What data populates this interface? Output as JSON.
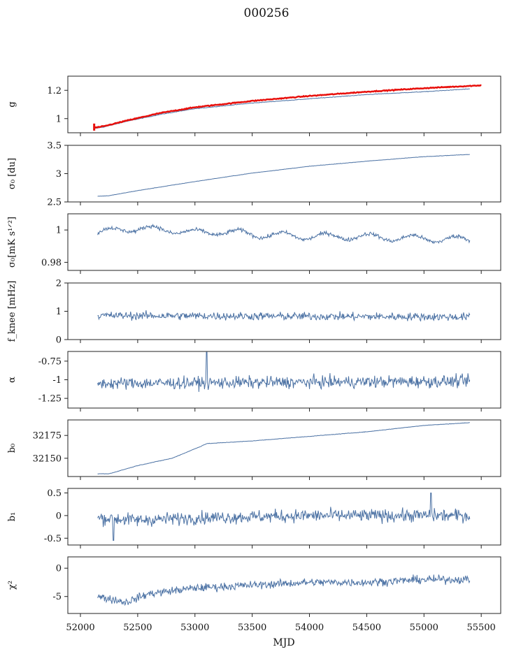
{
  "figure": {
    "title": "000256",
    "xlabel": "MJD",
    "xticks": [
      52000,
      52500,
      53000,
      53500,
      54000,
      54500,
      55000,
      55500
    ],
    "xlim": [
      51890,
      55670
    ]
  },
  "colors": {
    "series": "#4c72a4",
    "highlight": "#e8100c"
  },
  "chart_data": [
    {
      "type": "line",
      "panel": "g",
      "ylabel": "g",
      "ylim": [
        0.9,
        1.3
      ],
      "yticks": [
        1.0,
        1.2
      ],
      "x_range": [
        52120,
        55400
      ],
      "noise": 0.002,
      "curve": [
        [
          52120,
          0.93
        ],
        [
          52200,
          0.94
        ],
        [
          52400,
          0.98
        ],
        [
          52700,
          1.03
        ],
        [
          53000,
          1.07
        ],
        [
          53500,
          1.11
        ],
        [
          54000,
          1.14
        ],
        [
          54500,
          1.17
        ],
        [
          55000,
          1.19
        ],
        [
          55400,
          1.21
        ]
      ],
      "overlay": {
        "x_range": [
          52120,
          55500
        ],
        "noise": 0.003,
        "curve": [
          [
            52120,
            0.935
          ],
          [
            52200,
            0.945
          ],
          [
            52400,
            0.985
          ],
          [
            52700,
            1.04
          ],
          [
            53000,
            1.08
          ],
          [
            53500,
            1.125
          ],
          [
            54000,
            1.16
          ],
          [
            54500,
            1.19
          ],
          [
            55000,
            1.215
          ],
          [
            55500,
            1.235
          ]
        ]
      }
    },
    {
      "type": "line",
      "panel": "sigma0_du",
      "ylabel": "σ₀ [du]",
      "ylim": [
        2.5,
        3.5
      ],
      "yticks": [
        2.5,
        3.0,
        3.5
      ],
      "x_range": [
        52150,
        55400
      ],
      "noise": 0.003,
      "curve": [
        [
          52150,
          2.6
        ],
        [
          52250,
          2.61
        ],
        [
          52500,
          2.7
        ],
        [
          53000,
          2.86
        ],
        [
          53500,
          3.01
        ],
        [
          54000,
          3.13
        ],
        [
          54500,
          3.22
        ],
        [
          55000,
          3.3
        ],
        [
          55400,
          3.34
        ]
      ]
    },
    {
      "type": "line",
      "panel": "sigma0_mk",
      "ylabel": "σ₀[mK s¹ᐟ²]",
      "ylim": [
        0.975,
        1.01
      ],
      "yticks": [
        0.98,
        1.0
      ],
      "x_range": [
        52150,
        55400
      ],
      "noise": 0.0012,
      "curve": [
        [
          52150,
          0.998
        ],
        [
          52400,
          1.001
        ],
        [
          52800,
          1.0
        ],
        [
          53000,
          0.998
        ],
        [
          53200,
          0.999
        ],
        [
          53600,
          0.997
        ],
        [
          54000,
          0.996
        ],
        [
          54400,
          0.996
        ],
        [
          54800,
          0.995
        ],
        [
          55400,
          0.994
        ]
      ],
      "osc_amp": 0.002,
      "osc_period": 380
    },
    {
      "type": "line",
      "panel": "fknee",
      "ylabel": "f_knee [mHz]",
      "ylim": [
        0,
        2
      ],
      "yticks": [
        0,
        1,
        2
      ],
      "x_range": [
        52150,
        55400
      ],
      "noise": 0.14,
      "curve": [
        [
          52150,
          0.85
        ],
        [
          55400,
          0.8
        ]
      ]
    },
    {
      "type": "line",
      "panel": "alpha",
      "ylabel": "α",
      "ylim": [
        -1.38,
        -0.62
      ],
      "yticks": [
        -1.25,
        -1.0,
        -0.75
      ],
      "x_range": [
        52150,
        55400
      ],
      "noise": 0.08,
      "curve": [
        [
          52150,
          -1.05
        ],
        [
          55400,
          -1.02
        ]
      ],
      "spikes": [
        [
          53100,
          -0.63
        ]
      ]
    },
    {
      "type": "line",
      "panel": "b0",
      "ylabel": "b₀",
      "ylim": [
        32130,
        32192
      ],
      "yticks": [
        32150,
        32175
      ],
      "x_range": [
        52150,
        55400
      ],
      "noise": 0.25,
      "curve": [
        [
          52150,
          32133
        ],
        [
          52250,
          32133
        ],
        [
          52500,
          32142
        ],
        [
          52800,
          32150
        ],
        [
          53050,
          32163
        ],
        [
          53100,
          32166
        ],
        [
          53500,
          32169
        ],
        [
          54000,
          32174
        ],
        [
          54500,
          32179
        ],
        [
          55000,
          32186
        ],
        [
          55400,
          32189
        ]
      ]
    },
    {
      "type": "line",
      "panel": "b1",
      "ylabel": "b₁",
      "ylim": [
        -0.65,
        0.6
      ],
      "yticks": [
        -0.5,
        0.0,
        0.5
      ],
      "x_range": [
        52150,
        55400
      ],
      "noise": 0.14,
      "curve": [
        [
          52150,
          -0.05
        ],
        [
          52500,
          -0.1
        ],
        [
          53000,
          -0.05
        ],
        [
          54000,
          0.0
        ],
        [
          55400,
          0.0
        ]
      ],
      "spikes": [
        [
          55060,
          0.5
        ],
        [
          52290,
          -0.55
        ]
      ]
    },
    {
      "type": "line",
      "panel": "chi2",
      "ylabel": "χ²",
      "ylim": [
        -8,
        2
      ],
      "yticks": [
        -5,
        0
      ],
      "x_range": [
        52150,
        55400
      ],
      "noise": 0.7,
      "curve": [
        [
          52150,
          -5
        ],
        [
          52400,
          -6
        ],
        [
          52600,
          -4.5
        ],
        [
          53000,
          -3.5
        ],
        [
          53500,
          -3
        ],
        [
          54000,
          -2.5
        ],
        [
          54500,
          -2.5
        ],
        [
          55000,
          -2
        ],
        [
          55400,
          -2
        ]
      ]
    }
  ]
}
